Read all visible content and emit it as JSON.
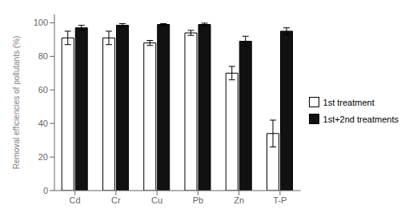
{
  "chart_data": {
    "type": "bar",
    "categories": [
      "Cd",
      "Cr",
      "Cu",
      "Pb",
      "Zn",
      "T-P"
    ],
    "series": [
      {
        "name": "1st treatment",
        "color": "#ffffff",
        "values": [
          91,
          91,
          88,
          94,
          70,
          34
        ],
        "errors": [
          4,
          4,
          1.5,
          1.5,
          4,
          8
        ]
      },
      {
        "name": "1st+2nd treatments",
        "color": "#111111",
        "values": [
          97,
          98.5,
          99,
          99,
          89,
          95
        ],
        "errors": [
          1.5,
          1.0,
          0.5,
          0.8,
          3,
          2
        ]
      }
    ],
    "ylabel": "Removal efficiencies of pollutants (%)",
    "ylim": [
      0,
      105
    ],
    "yticks": [
      0,
      20,
      40,
      60,
      80,
      100
    ],
    "grid": false,
    "legend": "right"
  }
}
